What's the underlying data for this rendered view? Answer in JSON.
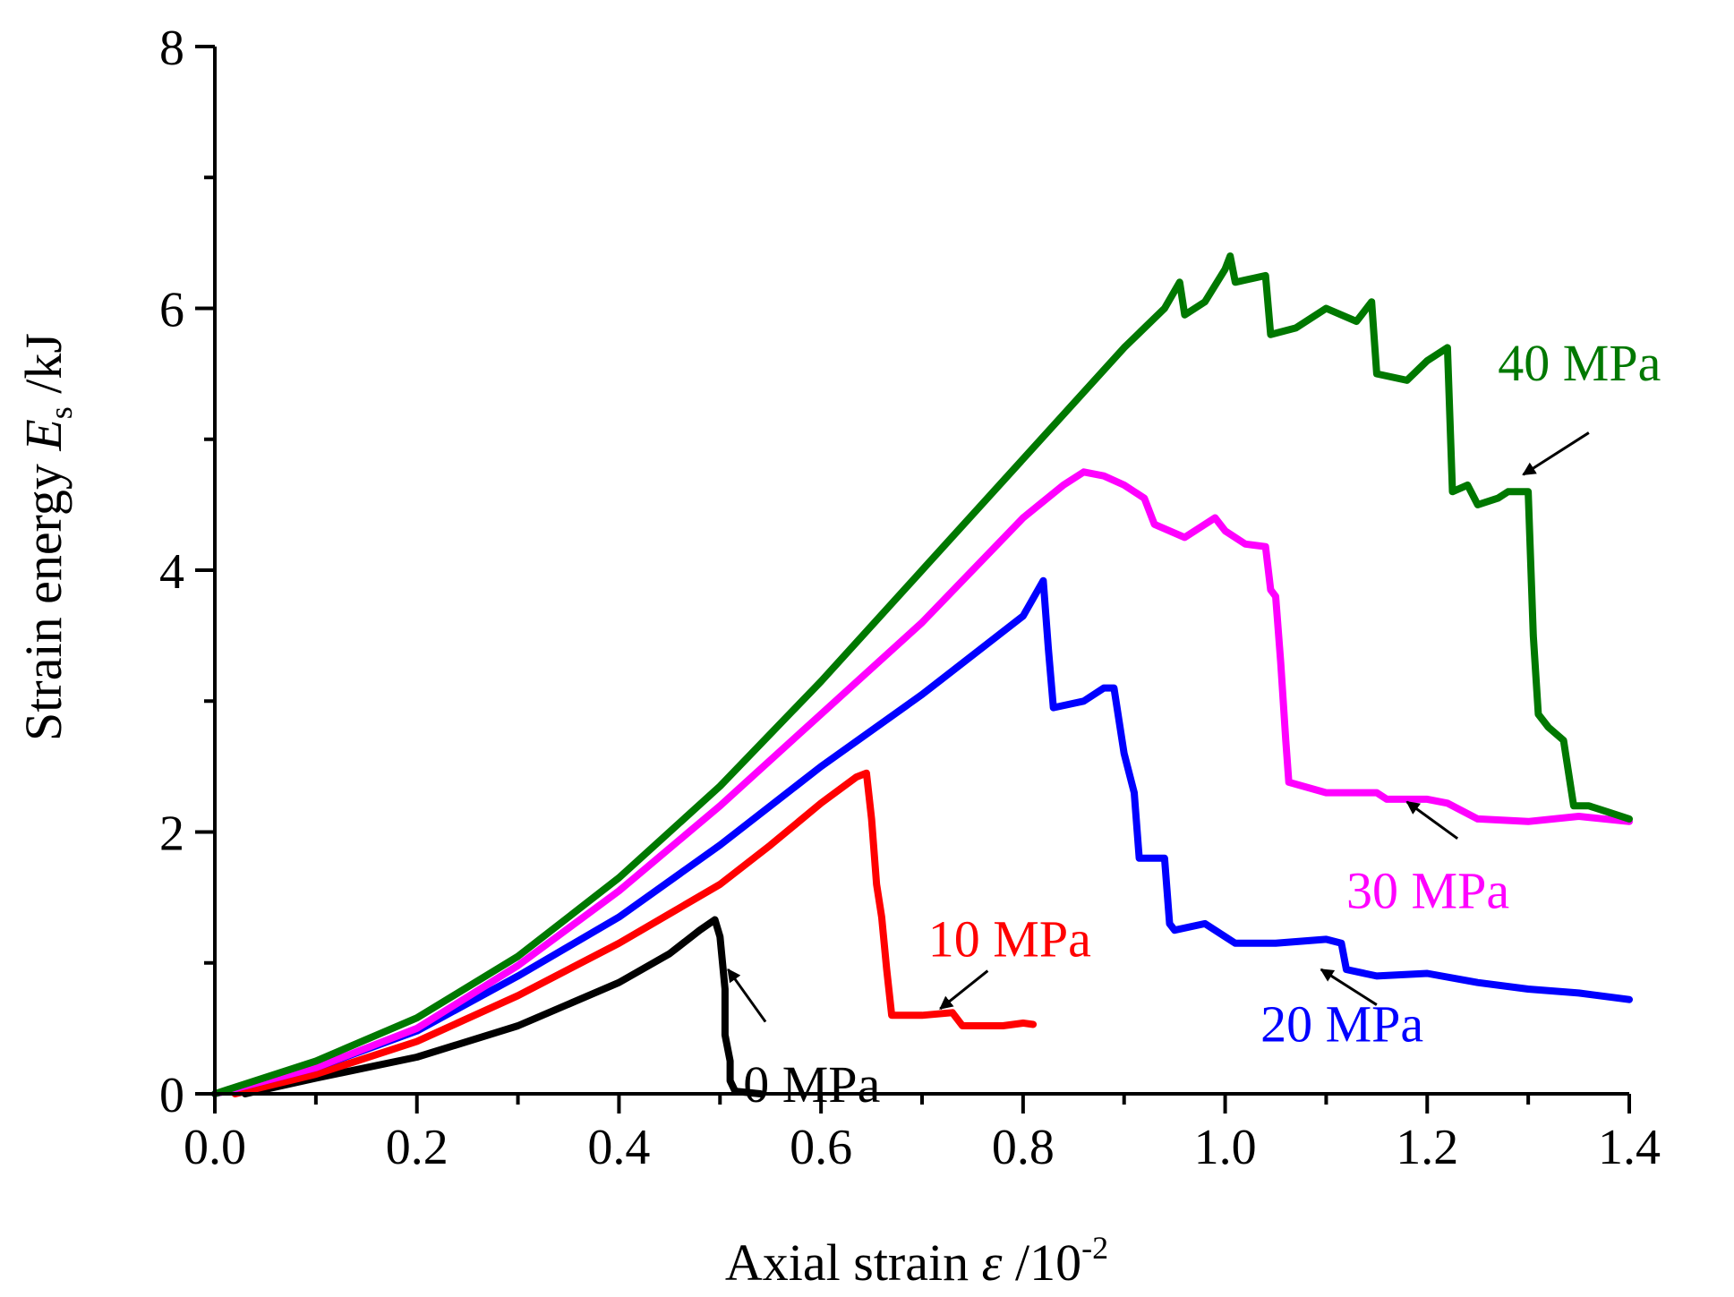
{
  "chart_data": {
    "type": "line",
    "title": "",
    "xlabel": {
      "prefix": "Axial strain ",
      "symbol": "ε",
      "suffix": " /10",
      "sup": "-2"
    },
    "ylabel": {
      "prefix": "Strain energy ",
      "symbol": "E",
      "sub": "s",
      "suffix": " /kJ"
    },
    "xlim": [
      0,
      1.4
    ],
    "ylim": [
      0,
      8
    ],
    "xticks": [
      "0.0",
      "0.2",
      "0.4",
      "0.6",
      "0.8",
      "1.0",
      "1.2",
      "1.4"
    ],
    "yticks": [
      "0",
      "2",
      "4",
      "6",
      "8"
    ],
    "series": [
      {
        "name": "0 MPa",
        "color": "#000000",
        "points": [
          [
            0.03,
            0
          ],
          [
            0.1,
            0.12
          ],
          [
            0.2,
            0.28
          ],
          [
            0.3,
            0.52
          ],
          [
            0.4,
            0.85
          ],
          [
            0.45,
            1.07
          ],
          [
            0.48,
            1.25
          ],
          [
            0.495,
            1.33
          ],
          [
            0.5,
            1.2
          ],
          [
            0.505,
            0.8
          ],
          [
            0.505,
            0.45
          ],
          [
            0.51,
            0.25
          ],
          [
            0.51,
            0.1
          ],
          [
            0.515,
            0.02
          ],
          [
            0.54,
            0.0
          ]
        ]
      },
      {
        "name": "10 MPa",
        "color": "#ff0000",
        "points": [
          [
            0.02,
            0
          ],
          [
            0.1,
            0.15
          ],
          [
            0.2,
            0.4
          ],
          [
            0.3,
            0.75
          ],
          [
            0.4,
            1.15
          ],
          [
            0.5,
            1.6
          ],
          [
            0.55,
            1.9
          ],
          [
            0.6,
            2.22
          ],
          [
            0.635,
            2.42
          ],
          [
            0.645,
            2.45
          ],
          [
            0.65,
            2.1
          ],
          [
            0.655,
            1.6
          ],
          [
            0.66,
            1.35
          ],
          [
            0.665,
            0.95
          ],
          [
            0.67,
            0.6
          ],
          [
            0.7,
            0.6
          ],
          [
            0.73,
            0.62
          ],
          [
            0.74,
            0.52
          ],
          [
            0.78,
            0.52
          ],
          [
            0.8,
            0.54
          ],
          [
            0.81,
            0.53
          ]
        ]
      },
      {
        "name": "20 MPa",
        "color": "#0000ff",
        "points": [
          [
            0.0,
            0
          ],
          [
            0.1,
            0.2
          ],
          [
            0.2,
            0.48
          ],
          [
            0.3,
            0.9
          ],
          [
            0.4,
            1.35
          ],
          [
            0.5,
            1.9
          ],
          [
            0.6,
            2.5
          ],
          [
            0.7,
            3.05
          ],
          [
            0.8,
            3.65
          ],
          [
            0.82,
            3.92
          ],
          [
            0.825,
            3.4
          ],
          [
            0.83,
            2.95
          ],
          [
            0.86,
            3.0
          ],
          [
            0.88,
            3.1
          ],
          [
            0.89,
            3.1
          ],
          [
            0.9,
            2.6
          ],
          [
            0.91,
            2.3
          ],
          [
            0.915,
            1.8
          ],
          [
            0.94,
            1.8
          ],
          [
            0.945,
            1.3
          ],
          [
            0.95,
            1.25
          ],
          [
            0.98,
            1.3
          ],
          [
            1.0,
            1.2
          ],
          [
            1.01,
            1.15
          ],
          [
            1.05,
            1.15
          ],
          [
            1.1,
            1.18
          ],
          [
            1.115,
            1.15
          ],
          [
            1.12,
            0.95
          ],
          [
            1.15,
            0.9
          ],
          [
            1.2,
            0.92
          ],
          [
            1.25,
            0.85
          ],
          [
            1.3,
            0.8
          ],
          [
            1.35,
            0.77
          ],
          [
            1.4,
            0.72
          ]
        ]
      },
      {
        "name": "30 MPa",
        "color": "#ff00ff",
        "points": [
          [
            0.0,
            0
          ],
          [
            0.1,
            0.2
          ],
          [
            0.2,
            0.5
          ],
          [
            0.3,
            0.98
          ],
          [
            0.4,
            1.55
          ],
          [
            0.5,
            2.2
          ],
          [
            0.6,
            2.9
          ],
          [
            0.7,
            3.6
          ],
          [
            0.8,
            4.4
          ],
          [
            0.84,
            4.65
          ],
          [
            0.86,
            4.75
          ],
          [
            0.88,
            4.72
          ],
          [
            0.9,
            4.65
          ],
          [
            0.92,
            4.55
          ],
          [
            0.93,
            4.35
          ],
          [
            0.96,
            4.25
          ],
          [
            0.99,
            4.4
          ],
          [
            1.0,
            4.3
          ],
          [
            1.02,
            4.2
          ],
          [
            1.04,
            4.18
          ],
          [
            1.045,
            3.85
          ],
          [
            1.05,
            3.8
          ],
          [
            1.055,
            3.3
          ],
          [
            1.06,
            2.7
          ],
          [
            1.063,
            2.38
          ],
          [
            1.1,
            2.3
          ],
          [
            1.15,
            2.3
          ],
          [
            1.16,
            2.25
          ],
          [
            1.2,
            2.25
          ],
          [
            1.22,
            2.22
          ],
          [
            1.25,
            2.1
          ],
          [
            1.3,
            2.08
          ],
          [
            1.35,
            2.12
          ],
          [
            1.4,
            2.08
          ]
        ]
      },
      {
        "name": "40 MPa",
        "color": "#007800",
        "points": [
          [
            0.0,
            0
          ],
          [
            0.1,
            0.25
          ],
          [
            0.2,
            0.58
          ],
          [
            0.3,
            1.05
          ],
          [
            0.4,
            1.65
          ],
          [
            0.5,
            2.35
          ],
          [
            0.6,
            3.15
          ],
          [
            0.7,
            4.0
          ],
          [
            0.8,
            4.85
          ],
          [
            0.9,
            5.7
          ],
          [
            0.94,
            6.0
          ],
          [
            0.955,
            6.2
          ],
          [
            0.96,
            5.95
          ],
          [
            0.98,
            6.05
          ],
          [
            1.0,
            6.3
          ],
          [
            1.005,
            6.4
          ],
          [
            1.01,
            6.2
          ],
          [
            1.04,
            6.25
          ],
          [
            1.045,
            5.8
          ],
          [
            1.07,
            5.85
          ],
          [
            1.1,
            6.0
          ],
          [
            1.13,
            5.9
          ],
          [
            1.145,
            6.05
          ],
          [
            1.15,
            5.5
          ],
          [
            1.18,
            5.45
          ],
          [
            1.2,
            5.6
          ],
          [
            1.22,
            5.7
          ],
          [
            1.225,
            4.6
          ],
          [
            1.24,
            4.65
          ],
          [
            1.25,
            4.5
          ],
          [
            1.27,
            4.55
          ],
          [
            1.28,
            4.6
          ],
          [
            1.3,
            4.6
          ],
          [
            1.305,
            3.5
          ],
          [
            1.31,
            2.9
          ],
          [
            1.32,
            2.8
          ],
          [
            1.335,
            2.7
          ],
          [
            1.345,
            2.2
          ],
          [
            1.36,
            2.2
          ],
          [
            1.38,
            2.15
          ],
          [
            1.4,
            2.1
          ]
        ]
      }
    ],
    "annotations": [
      {
        "text": "0 MPa",
        "series": "0 MPa",
        "label_x": 0.523,
        "label_y": -0.06,
        "arrow_from": [
          0.545,
          0.55
        ],
        "arrow_to": [
          0.508,
          0.95
        ]
      },
      {
        "text": "10 MPa",
        "series": "10 MPa",
        "label_x": 0.706,
        "label_y": 1.05,
        "arrow_from": [
          0.765,
          0.94
        ],
        "arrow_to": [
          0.718,
          0.65
        ]
      },
      {
        "text": "20 MPa",
        "series": "20 MPa",
        "label_x": 1.035,
        "label_y": 0.4,
        "arrow_from": [
          1.15,
          0.68
        ],
        "arrow_to": [
          1.095,
          0.95
        ]
      },
      {
        "text": "30 MPa",
        "series": "30 MPa",
        "label_x": 1.12,
        "label_y": 1.42,
        "arrow_from": [
          1.23,
          1.95
        ],
        "arrow_to": [
          1.18,
          2.23
        ]
      },
      {
        "text": "40 MPa",
        "series": "40 MPa",
        "label_x": 1.27,
        "label_y": 5.45,
        "arrow_from": [
          1.36,
          5.05
        ],
        "arrow_to": [
          1.295,
          4.73
        ]
      }
    ]
  }
}
